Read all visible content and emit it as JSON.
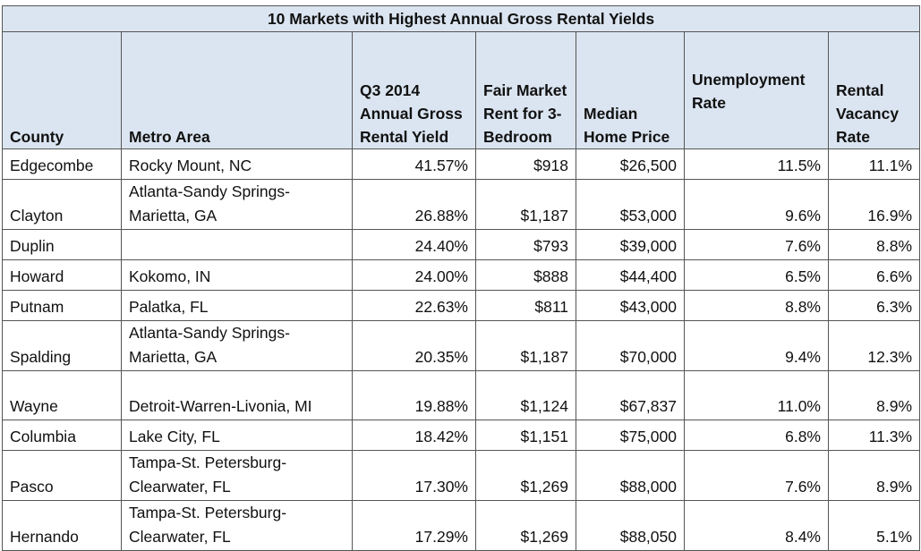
{
  "title": "10 Markets with Highest Annual Gross Rental Yields",
  "columns": [
    "County",
    "Metro Area",
    "Q3 2014 Annual Gross Rental Yield",
    "Fair Market Rent for 3-Bedroom",
    "Median Home Price",
    "Unemployment Rate",
    "Rental Vacancy Rate"
  ],
  "rows": [
    {
      "county": "Edgecombe",
      "metro": "Rocky Mount, NC",
      "yield": "41.57%",
      "rent": "$918",
      "price": "$26,500",
      "unemp": "11.5%",
      "vacancy": "11.1%"
    },
    {
      "county": "Clayton",
      "metro": "Atlanta-Sandy Springs-Marietta, GA",
      "yield": "26.88%",
      "rent": "$1,187",
      "price": "$53,000",
      "unemp": "9.6%",
      "vacancy": "16.9%"
    },
    {
      "county": "Duplin",
      "metro": "",
      "yield": "24.40%",
      "rent": "$793",
      "price": "$39,000",
      "unemp": "7.6%",
      "vacancy": "8.8%"
    },
    {
      "county": "Howard",
      "metro": "Kokomo, IN",
      "yield": "24.00%",
      "rent": "$888",
      "price": "$44,400",
      "unemp": "6.5%",
      "vacancy": "6.6%"
    },
    {
      "county": "Putnam",
      "metro": "Palatka, FL",
      "yield": "22.63%",
      "rent": "$811",
      "price": "$43,000",
      "unemp": "8.8%",
      "vacancy": "6.3%"
    },
    {
      "county": "Spalding",
      "metro": "Atlanta-Sandy Springs-Marietta, GA",
      "yield": "20.35%",
      "rent": "$1,187",
      "price": "$70,000",
      "unemp": "9.4%",
      "vacancy": "12.3%"
    },
    {
      "county": "Wayne",
      "metro": "Detroit-Warren-Livonia, MI",
      "yield": "19.88%",
      "rent": "$1,124",
      "price": "$67,837",
      "unemp": "11.0%",
      "vacancy": "8.9%"
    },
    {
      "county": "Columbia",
      "metro": "Lake City, FL",
      "yield": "18.42%",
      "rent": "$1,151",
      "price": "$75,000",
      "unemp": "6.8%",
      "vacancy": "11.3%"
    },
    {
      "county": "Pasco",
      "metro": "Tampa-St. Petersburg-Clearwater, FL",
      "yield": "17.30%",
      "rent": "$1,269",
      "price": "$88,000",
      "unemp": "7.6%",
      "vacancy": "8.9%"
    },
    {
      "county": "Hernando",
      "metro": "Tampa-St. Petersburg-Clearwater, FL",
      "yield": "17.29%",
      "rent": "$1,269",
      "price": "$88,050",
      "unemp": "8.4%",
      "vacancy": "5.1%"
    }
  ]
}
